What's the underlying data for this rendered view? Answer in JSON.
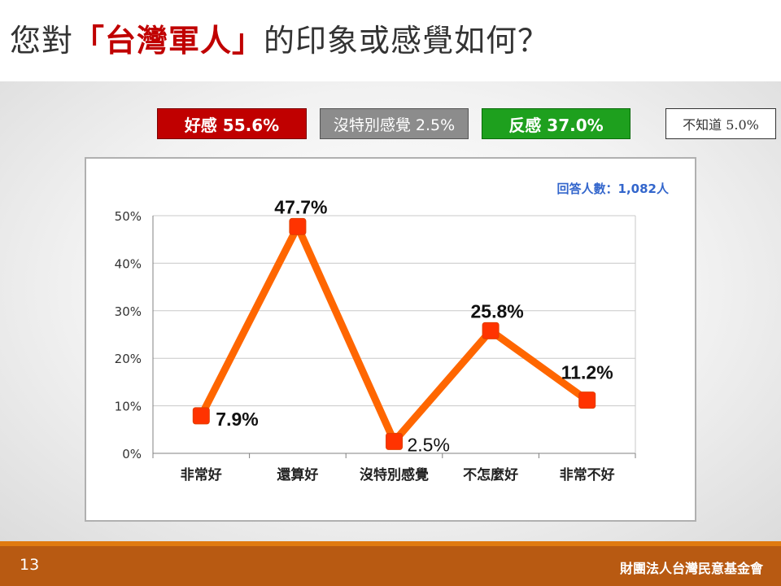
{
  "header": {
    "title_prefix": "您對",
    "title_highlight": "「台灣軍人」",
    "title_suffix": "的印象或感覺如何？"
  },
  "summary": {
    "good": "好感 55.6%",
    "neutral": "沒特別感覺 2.5%",
    "bad": "反感 37.0%",
    "unknown": "不知道 5.0%"
  },
  "colors": {
    "line": "#ff6600",
    "marker": "#ff3300",
    "good": "#c00000",
    "bad": "#1ea01e",
    "neutral": "#8c8c8c",
    "note": "#3366cc"
  },
  "chart_data": {
    "type": "line",
    "title": "",
    "xlabel": "",
    "ylabel": "",
    "annotation": "回答人數：1,082人",
    "categories": [
      "非常好",
      "還算好",
      "沒特別感覺",
      "不怎麼好",
      "非常不好"
    ],
    "values": [
      7.9,
      47.7,
      2.5,
      25.8,
      11.2
    ],
    "data_labels": [
      "7.9%",
      "47.7%",
      "2.5%",
      "25.8%",
      "11.2%"
    ],
    "yticks": [
      "0%",
      "10%",
      "20%",
      "30%",
      "40%",
      "50%"
    ],
    "ylim": [
      0,
      50
    ],
    "grid": true,
    "legend": "none"
  },
  "footer": {
    "page_number": "13",
    "organization": "財團法人台灣民意基金會"
  }
}
